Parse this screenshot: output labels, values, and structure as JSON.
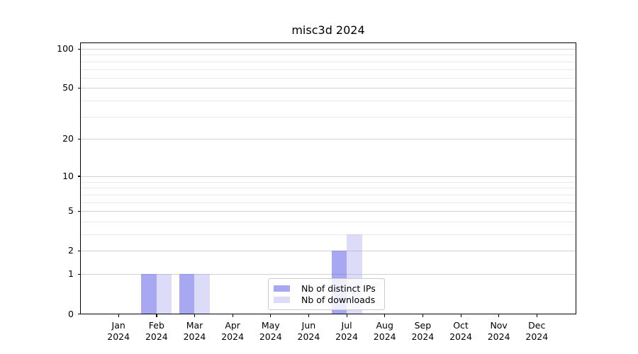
{
  "title": "misc3d 2024",
  "chart_data": {
    "type": "bar",
    "title": "misc3d 2024",
    "categories": [
      "Jan",
      "Feb",
      "Mar",
      "Apr",
      "May",
      "Jun",
      "Jul",
      "Aug",
      "Sep",
      "Oct",
      "Nov",
      "Dec"
    ],
    "year_label": "2024",
    "series": [
      {
        "name": "Nb of distinct IPs",
        "color": "rgba(96,96,232,0.55)",
        "values": [
          0,
          1,
          1,
          0,
          0,
          0,
          2,
          0,
          0,
          0,
          0,
          0
        ]
      },
      {
        "name": "Nb of downloads",
        "color": "rgba(150,150,237,0.33)",
        "values": [
          0,
          1,
          1,
          0,
          0,
          0,
          3,
          0,
          0,
          0,
          0,
          0
        ]
      }
    ],
    "yscale": "log1p",
    "ylim": [
      0,
      110.5
    ],
    "yticks": [
      0,
      1,
      2,
      5,
      10,
      20,
      50,
      100
    ],
    "minor_gridlines": [
      3,
      4,
      6,
      7,
      8,
      9,
      30,
      40,
      60,
      70,
      80,
      90
    ],
    "grid": true,
    "legend_position": "lower center-right inside plot",
    "colors": {
      "major_grid": "#d2d2d2",
      "minor_grid": "#eaeaea",
      "spine": "#000000",
      "bar_distinct_ips": "#a8a8f2",
      "bar_downloads": "#dcdcf9"
    }
  }
}
